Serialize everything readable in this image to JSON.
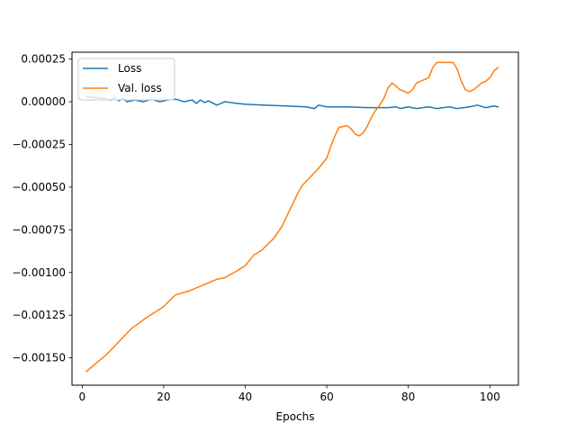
{
  "chart_data": {
    "type": "line",
    "title": "",
    "xlabel": "Epochs",
    "ylabel": "",
    "xlim": [
      -2.5,
      107
    ],
    "ylim": [
      -0.00166,
      0.00029
    ],
    "grid": false,
    "legend_position": "top-left",
    "x_ticks": [
      0,
      20,
      40,
      60,
      80,
      100
    ],
    "x_tick_labels": [
      "0",
      "20",
      "40",
      "60",
      "80",
      "100"
    ],
    "y_ticks": [
      0.00025,
      0,
      -0.00025,
      -0.0005,
      -0.00075,
      -0.001,
      -0.00125,
      -0.0015
    ],
    "y_tick_labels": [
      "0.00025",
      "0.00000",
      "−0.00025",
      "−0.00050",
      "−0.00075",
      "−0.00100",
      "−0.00125",
      "−0.00150"
    ],
    "series": [
      {
        "name": "Loss",
        "color": "#1f77b4",
        "points": [
          [
            1,
            3e-05
          ],
          [
            5,
            2e-05
          ],
          [
            7,
            1e-05
          ],
          [
            8,
            2.5e-05
          ],
          [
            9,
            5e-06
          ],
          [
            10,
            2e-05
          ],
          [
            11,
            0.0
          ],
          [
            13,
            1e-05
          ],
          [
            15,
            0.0
          ],
          [
            17,
            1.5e-05
          ],
          [
            19,
            0.0
          ],
          [
            21,
            1e-05
          ],
          [
            23,
            1.5e-05
          ],
          [
            25,
            0.0
          ],
          [
            27,
            1e-05
          ],
          [
            28,
            -1e-05
          ],
          [
            29,
            1e-05
          ],
          [
            30,
            -5e-06
          ],
          [
            31,
            5e-06
          ],
          [
            33,
            -2e-05
          ],
          [
            35,
            0.0
          ],
          [
            38,
            -1e-05
          ],
          [
            40,
            -1.5e-05
          ],
          [
            45,
            -2e-05
          ],
          [
            50,
            -2.5e-05
          ],
          [
            55,
            -3e-05
          ],
          [
            57,
            -4e-05
          ],
          [
            58,
            -2e-05
          ],
          [
            60,
            -3e-05
          ],
          [
            65,
            -3e-05
          ],
          [
            70,
            -3.5e-05
          ],
          [
            75,
            -3.5e-05
          ],
          [
            77,
            -3e-05
          ],
          [
            78,
            -4e-05
          ],
          [
            80,
            -3e-05
          ],
          [
            82,
            -4e-05
          ],
          [
            85,
            -3e-05
          ],
          [
            87,
            -4e-05
          ],
          [
            90,
            -3e-05
          ],
          [
            92,
            -4e-05
          ],
          [
            95,
            -3e-05
          ],
          [
            97,
            -2e-05
          ],
          [
            99,
            -3.5e-05
          ],
          [
            101,
            -2.5e-05
          ],
          [
            102,
            -3e-05
          ]
        ]
      },
      {
        "name": "Val. loss",
        "color": "#ff7f0e",
        "points": [
          [
            1,
            -0.00158
          ],
          [
            3,
            -0.00154
          ],
          [
            6,
            -0.00148
          ],
          [
            10,
            -0.00138
          ],
          [
            12,
            -0.00133
          ],
          [
            16,
            -0.00126
          ],
          [
            20,
            -0.0012
          ],
          [
            22,
            -0.00115
          ],
          [
            23,
            -0.00113
          ],
          [
            26,
            -0.00111
          ],
          [
            30,
            -0.00107
          ],
          [
            33,
            -0.00104
          ],
          [
            35,
            -0.00103
          ],
          [
            38,
            -0.00099
          ],
          [
            40,
            -0.00096
          ],
          [
            42,
            -0.0009
          ],
          [
            44,
            -0.00087
          ],
          [
            47,
            -0.0008
          ],
          [
            49,
            -0.00073
          ],
          [
            51,
            -0.00063
          ],
          [
            53,
            -0.00053
          ],
          [
            54,
            -0.00049
          ],
          [
            56,
            -0.00044
          ],
          [
            58,
            -0.00039
          ],
          [
            60,
            -0.00033
          ],
          [
            61,
            -0.00026
          ],
          [
            62,
            -0.0002
          ],
          [
            63,
            -0.00015
          ],
          [
            65,
            -0.00014
          ],
          [
            66,
            -0.00016
          ],
          [
            67,
            -0.00019
          ],
          [
            68,
            -0.0002
          ],
          [
            69,
            -0.00018
          ],
          [
            70,
            -0.00014
          ],
          [
            71,
            -9e-05
          ],
          [
            72,
            -5e-05
          ],
          [
            73,
            -2e-05
          ],
          [
            74,
            2e-05
          ],
          [
            75,
            8e-05
          ],
          [
            76,
            0.00011
          ],
          [
            77,
            9e-05
          ],
          [
            78,
            7e-05
          ],
          [
            80,
            5e-05
          ],
          [
            81,
            7e-05
          ],
          [
            82,
            0.00011
          ],
          [
            83,
            0.00012
          ],
          [
            84,
            0.00013
          ],
          [
            85,
            0.00014
          ],
          [
            86,
            0.0002
          ],
          [
            87,
            0.00023
          ],
          [
            88,
            0.00023
          ],
          [
            89,
            0.00023
          ],
          [
            91,
            0.00023
          ],
          [
            92,
            0.00019
          ],
          [
            93,
            0.00012
          ],
          [
            94,
            7e-05
          ],
          [
            95,
            6e-05
          ],
          [
            96,
            7e-05
          ],
          [
            97,
            9e-05
          ],
          [
            98,
            0.00011
          ],
          [
            99,
            0.00012
          ],
          [
            100,
            0.00014
          ],
          [
            101,
            0.00018
          ],
          [
            102,
            0.0002
          ]
        ]
      }
    ]
  }
}
